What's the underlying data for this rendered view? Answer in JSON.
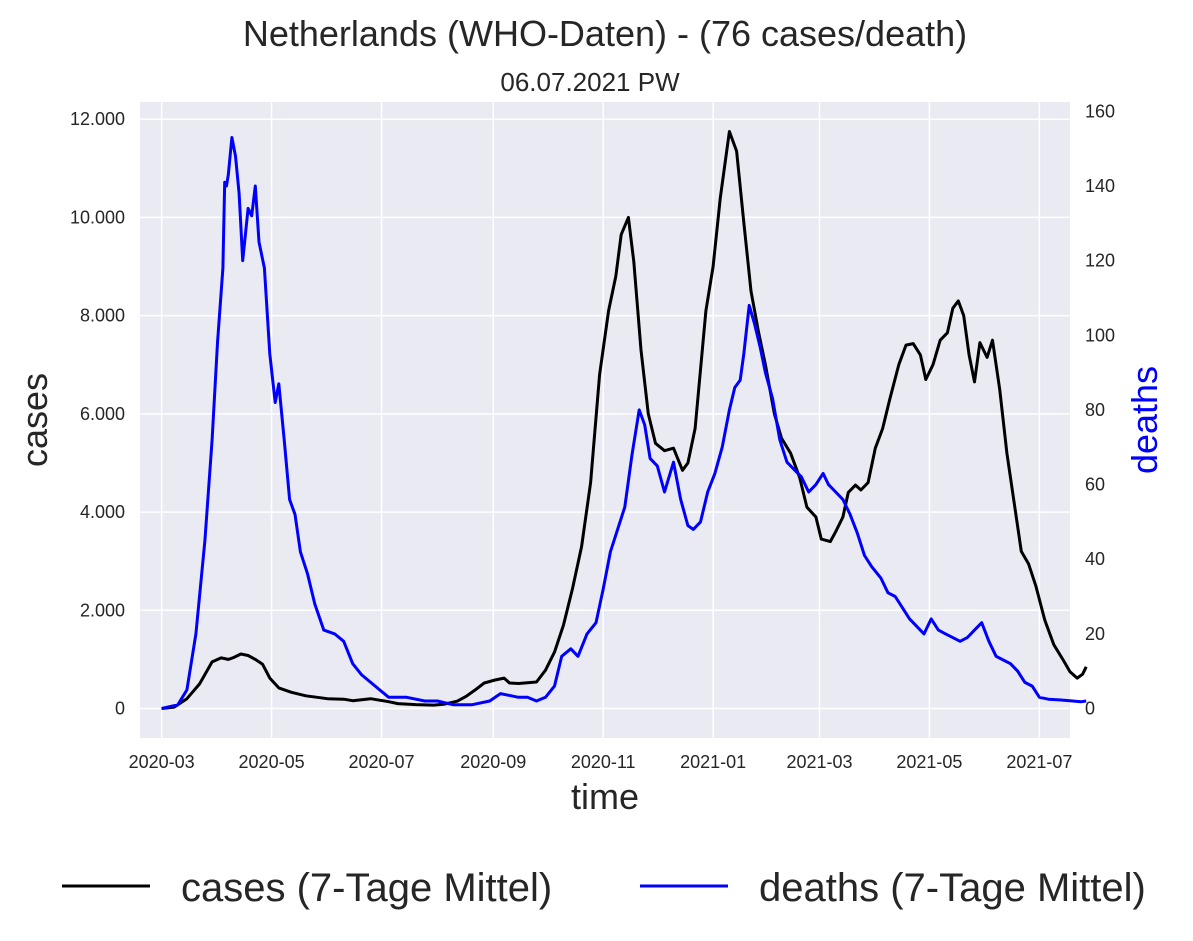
{
  "chart_data": {
    "type": "line",
    "title": "Netherlands (WHO-Daten) - (76 cases/death)",
    "subtitle": "06.07.2021 PW",
    "xlabel": "time",
    "ylabel_left": "cases",
    "ylabel_right": "deaths",
    "xlim": [
      "2020-02-18",
      "2021-07-18"
    ],
    "ylim_left": [
      -600,
      12350
    ],
    "ylim_right": [
      -7.9,
      162.5
    ],
    "x_ticks": [
      "2020-03",
      "2020-05",
      "2020-07",
      "2020-09",
      "2020-11",
      "2021-01",
      "2021-03",
      "2021-05",
      "2021-07"
    ],
    "y_ticks_left": [
      0,
      2000,
      4000,
      6000,
      8000,
      10000,
      12000
    ],
    "y_ticks_left_labels": [
      "0",
      "2.000",
      "4.000",
      "6.000",
      "8.000",
      "10.000",
      "12.000"
    ],
    "y_ticks_right": [
      0,
      20,
      40,
      60,
      80,
      100,
      120,
      140,
      160
    ],
    "y_ticks_right_labels": [
      "0",
      "20",
      "40",
      "60",
      "80",
      "100",
      "120",
      "140",
      "160"
    ],
    "grid": true,
    "background": "#eaeaf2",
    "grid_color": "#ffffff",
    "legend_position": "bottom",
    "series": [
      {
        "name": "cases (7-Tage Mittel)",
        "axis": "left",
        "color": "#000000",
        "points": [
          [
            "2020-03-01",
            0
          ],
          [
            "2020-03-08",
            30
          ],
          [
            "2020-03-15",
            200
          ],
          [
            "2020-03-22",
            500
          ],
          [
            "2020-03-29",
            950
          ],
          [
            "2020-04-03",
            1030
          ],
          [
            "2020-04-07",
            1000
          ],
          [
            "2020-04-10",
            1040
          ],
          [
            "2020-04-14",
            1110
          ],
          [
            "2020-04-18",
            1080
          ],
          [
            "2020-04-22",
            1000
          ],
          [
            "2020-04-26",
            900
          ],
          [
            "2020-04-30",
            620
          ],
          [
            "2020-05-05",
            420
          ],
          [
            "2020-05-12",
            330
          ],
          [
            "2020-05-20",
            260
          ],
          [
            "2020-06-01",
            200
          ],
          [
            "2020-06-10",
            190
          ],
          [
            "2020-06-15",
            160
          ],
          [
            "2020-06-25",
            200
          ],
          [
            "2020-07-05",
            140
          ],
          [
            "2020-07-10",
            100
          ],
          [
            "2020-07-20",
            80
          ],
          [
            "2020-07-30",
            70
          ],
          [
            "2020-08-05",
            90
          ],
          [
            "2020-08-12",
            150
          ],
          [
            "2020-08-17",
            250
          ],
          [
            "2020-08-22",
            380
          ],
          [
            "2020-08-27",
            520
          ],
          [
            "2020-09-02",
            580
          ],
          [
            "2020-09-07",
            620
          ],
          [
            "2020-09-10",
            520
          ],
          [
            "2020-09-15",
            510
          ],
          [
            "2020-09-25",
            540
          ],
          [
            "2020-09-30",
            780
          ],
          [
            "2020-10-05",
            1150
          ],
          [
            "2020-10-10",
            1700
          ],
          [
            "2020-10-15",
            2450
          ],
          [
            "2020-10-20",
            3300
          ],
          [
            "2020-10-25",
            4600
          ],
          [
            "2020-10-30",
            6800
          ],
          [
            "2020-11-04",
            8100
          ],
          [
            "2020-11-08",
            8800
          ],
          [
            "2020-11-11",
            9650
          ],
          [
            "2020-11-15",
            10000
          ],
          [
            "2020-11-18",
            9100
          ],
          [
            "2020-11-22",
            7300
          ],
          [
            "2020-11-26",
            6000
          ],
          [
            "2020-11-30",
            5400
          ],
          [
            "2020-12-05",
            5250
          ],
          [
            "2020-12-10",
            5300
          ],
          [
            "2020-12-15",
            4850
          ],
          [
            "2020-12-18",
            5000
          ],
          [
            "2020-12-22",
            5700
          ],
          [
            "2020-12-25",
            6900
          ],
          [
            "2020-12-28",
            8100
          ],
          [
            "2021-01-01",
            9000
          ],
          [
            "2021-01-05",
            10400
          ],
          [
            "2021-01-10",
            11750
          ],
          [
            "2021-01-14",
            11350
          ],
          [
            "2021-01-18",
            9900
          ],
          [
            "2021-01-22",
            8500
          ],
          [
            "2021-01-26",
            7700
          ],
          [
            "2021-01-30",
            7000
          ],
          [
            "2021-02-04",
            6000
          ],
          [
            "2021-02-08",
            5500
          ],
          [
            "2021-02-13",
            5200
          ],
          [
            "2021-02-18",
            4700
          ],
          [
            "2021-02-22",
            4100
          ],
          [
            "2021-02-27",
            3900
          ],
          [
            "2021-03-02",
            3450
          ],
          [
            "2021-03-07",
            3400
          ],
          [
            "2021-03-10",
            3600
          ],
          [
            "2021-03-14",
            3900
          ],
          [
            "2021-03-17",
            4400
          ],
          [
            "2021-03-21",
            4550
          ],
          [
            "2021-03-24",
            4450
          ],
          [
            "2021-03-28",
            4600
          ],
          [
            "2021-04-01",
            5300
          ],
          [
            "2021-04-05",
            5700
          ],
          [
            "2021-04-09",
            6300
          ],
          [
            "2021-04-14",
            7000
          ],
          [
            "2021-04-18",
            7400
          ],
          [
            "2021-04-22",
            7430
          ],
          [
            "2021-04-26",
            7200
          ],
          [
            "2021-04-29",
            6700
          ],
          [
            "2021-05-03",
            7000
          ],
          [
            "2021-05-07",
            7500
          ],
          [
            "2021-05-11",
            7650
          ],
          [
            "2021-05-14",
            8150
          ],
          [
            "2021-05-17",
            8300
          ],
          [
            "2021-05-20",
            8000
          ],
          [
            "2021-05-23",
            7200
          ],
          [
            "2021-05-26",
            6650
          ],
          [
            "2021-05-29",
            7450
          ],
          [
            "2021-06-02",
            7150
          ],
          [
            "2021-06-05",
            7500
          ],
          [
            "2021-06-09",
            6500
          ],
          [
            "2021-06-13",
            5200
          ],
          [
            "2021-06-17",
            4200
          ],
          [
            "2021-06-21",
            3200
          ],
          [
            "2021-06-25",
            2950
          ],
          [
            "2021-06-29",
            2500
          ],
          [
            "2021-07-04",
            1800
          ],
          [
            "2021-07-09",
            1300
          ],
          [
            "2021-07-14",
            1000
          ],
          [
            "2021-07-18",
            750
          ],
          [
            "2021-07-22",
            620
          ],
          [
            "2021-07-25",
            700
          ],
          [
            "2021-07-27",
            850
          ]
        ]
      },
      {
        "name": "deaths (7-Tage Mittel)",
        "axis": "right",
        "color": "#0000ff",
        "points": [
          [
            "2020-03-01",
            0
          ],
          [
            "2020-03-10",
            1
          ],
          [
            "2020-03-15",
            5
          ],
          [
            "2020-03-20",
            20
          ],
          [
            "2020-03-25",
            45
          ],
          [
            "2020-03-29",
            72
          ],
          [
            "2020-04-01",
            98
          ],
          [
            "2020-04-04",
            118
          ],
          [
            "2020-04-05",
            141
          ],
          [
            "2020-04-06",
            140
          ],
          [
            "2020-04-07",
            143
          ],
          [
            "2020-04-08",
            148
          ],
          [
            "2020-04-09",
            153
          ],
          [
            "2020-04-11",
            148
          ],
          [
            "2020-04-13",
            138
          ],
          [
            "2020-04-15",
            120
          ],
          [
            "2020-04-18",
            134
          ],
          [
            "2020-04-20",
            132
          ],
          [
            "2020-04-22",
            140
          ],
          [
            "2020-04-24",
            125
          ],
          [
            "2020-04-27",
            118
          ],
          [
            "2020-04-30",
            95
          ],
          [
            "2020-05-03",
            82
          ],
          [
            "2020-05-05",
            87
          ],
          [
            "2020-05-08",
            72
          ],
          [
            "2020-05-11",
            56
          ],
          [
            "2020-05-14",
            52
          ],
          [
            "2020-05-17",
            42
          ],
          [
            "2020-05-21",
            36
          ],
          [
            "2020-05-25",
            28
          ],
          [
            "2020-05-30",
            21
          ],
          [
            "2020-06-05",
            20
          ],
          [
            "2020-06-10",
            18
          ],
          [
            "2020-06-15",
            12
          ],
          [
            "2020-06-20",
            9
          ],
          [
            "2020-06-25",
            7
          ],
          [
            "2020-06-30",
            5
          ],
          [
            "2020-07-05",
            3
          ],
          [
            "2020-07-15",
            3
          ],
          [
            "2020-07-25",
            2
          ],
          [
            "2020-08-01",
            2
          ],
          [
            "2020-08-10",
            1
          ],
          [
            "2020-08-20",
            1
          ],
          [
            "2020-08-30",
            2
          ],
          [
            "2020-09-05",
            4
          ],
          [
            "2020-09-15",
            3
          ],
          [
            "2020-09-20",
            3
          ],
          [
            "2020-09-25",
            2
          ],
          [
            "2020-09-30",
            3
          ],
          [
            "2020-10-05",
            6
          ],
          [
            "2020-10-09",
            14
          ],
          [
            "2020-10-14",
            16
          ],
          [
            "2020-10-18",
            14
          ],
          [
            "2020-10-23",
            20
          ],
          [
            "2020-10-28",
            23
          ],
          [
            "2020-11-01",
            32
          ],
          [
            "2020-11-05",
            42
          ],
          [
            "2020-11-09",
            48
          ],
          [
            "2020-11-13",
            54
          ],
          [
            "2020-11-17",
            68
          ],
          [
            "2020-11-21",
            80
          ],
          [
            "2020-11-24",
            76
          ],
          [
            "2020-11-27",
            67
          ],
          [
            "2020-12-01",
            65
          ],
          [
            "2020-12-05",
            58
          ],
          [
            "2020-12-10",
            66
          ],
          [
            "2020-12-14",
            56
          ],
          [
            "2020-12-18",
            49
          ],
          [
            "2020-12-21",
            48
          ],
          [
            "2020-12-25",
            50
          ],
          [
            "2020-12-29",
            58
          ],
          [
            "2021-01-02",
            63
          ],
          [
            "2021-01-06",
            70
          ],
          [
            "2021-01-10",
            80
          ],
          [
            "2021-01-13",
            86
          ],
          [
            "2021-01-16",
            88
          ],
          [
            "2021-01-18",
            95
          ],
          [
            "2021-01-21",
            108
          ],
          [
            "2021-01-24",
            103
          ],
          [
            "2021-01-27",
            97
          ],
          [
            "2021-01-30",
            90
          ],
          [
            "2021-02-03",
            83
          ],
          [
            "2021-02-07",
            72
          ],
          [
            "2021-02-11",
            66
          ],
          [
            "2021-02-15",
            64
          ],
          [
            "2021-02-19",
            62
          ],
          [
            "2021-02-23",
            58
          ],
          [
            "2021-02-27",
            60
          ],
          [
            "2021-03-03",
            63
          ],
          [
            "2021-03-06",
            60
          ],
          [
            "2021-03-10",
            58
          ],
          [
            "2021-03-14",
            56
          ],
          [
            "2021-03-18",
            52
          ],
          [
            "2021-03-22",
            47
          ],
          [
            "2021-03-26",
            41
          ],
          [
            "2021-03-30",
            38
          ],
          [
            "2021-04-04",
            35
          ],
          [
            "2021-04-08",
            31
          ],
          [
            "2021-04-12",
            30
          ],
          [
            "2021-04-16",
            27
          ],
          [
            "2021-04-20",
            24
          ],
          [
            "2021-04-24",
            22
          ],
          [
            "2021-04-28",
            20
          ],
          [
            "2021-05-02",
            24
          ],
          [
            "2021-05-06",
            21
          ],
          [
            "2021-05-10",
            20
          ],
          [
            "2021-05-14",
            19
          ],
          [
            "2021-05-18",
            18
          ],
          [
            "2021-05-22",
            19
          ],
          [
            "2021-05-26",
            21
          ],
          [
            "2021-05-30",
            23
          ],
          [
            "2021-06-03",
            18
          ],
          [
            "2021-06-07",
            14
          ],
          [
            "2021-06-11",
            13
          ],
          [
            "2021-06-15",
            12
          ],
          [
            "2021-06-19",
            10
          ],
          [
            "2021-06-23",
            7
          ],
          [
            "2021-06-27",
            6
          ],
          [
            "2021-07-01",
            3
          ],
          [
            "2021-07-06",
            2.5
          ],
          [
            "2021-07-12",
            2.3
          ],
          [
            "2021-07-18",
            2.1
          ],
          [
            "2021-07-24",
            1.8
          ],
          [
            "2021-07-27",
            2
          ]
        ]
      }
    ]
  }
}
